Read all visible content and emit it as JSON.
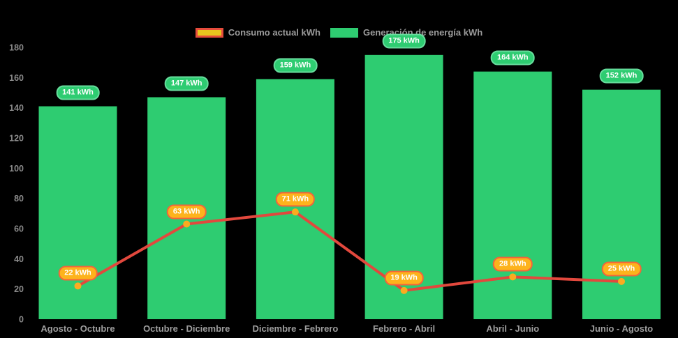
{
  "colors": {
    "background": "#000000"
  },
  "legend": {
    "items": [
      {
        "label": "Consumo actual kWh",
        "swatch_fill": "#e9c41e",
        "swatch_border": "#e64c3c"
      },
      {
        "label": "Generación de energía kWh",
        "swatch_fill": "#2ecc71",
        "swatch_border": "#2ecc71"
      }
    ]
  },
  "chart_data": {
    "type": "bar",
    "categories": [
      "Agosto - Octubre",
      "Octubre - Diciembre",
      "Diciembre - Febrero",
      "Febrero - Abril",
      "Abril - Junio",
      "Junio - Agosto"
    ],
    "series": [
      {
        "name": "Generación de energía kWh",
        "type": "bar",
        "color": "#2ecc71",
        "values": [
          141,
          147,
          159,
          175,
          164,
          152
        ],
        "labels": [
          "141 kWh",
          "147 kWh",
          "159 kWh",
          "175 kWh",
          "164 kWh",
          "152 kWh"
        ],
        "label_bg": "#2ecc71",
        "label_border": "#67dd9d"
      },
      {
        "name": "Consumo actual kWh",
        "type": "line",
        "color": "#e2483d",
        "point_color": "#fbab20",
        "values": [
          22,
          63,
          71,
          19,
          28,
          25
        ],
        "labels": [
          "22 kWh",
          "63 kWh",
          "71 kWh",
          "19 kWh",
          "28 kWh",
          "25 kWh"
        ],
        "label_bg": "#fdb31c",
        "label_border": "#f2653b"
      }
    ],
    "ylim": [
      0,
      180
    ],
    "yticks": [
      0,
      20,
      40,
      60,
      80,
      100,
      120,
      140,
      160,
      180
    ],
    "grid": false,
    "legend_position": "top"
  }
}
